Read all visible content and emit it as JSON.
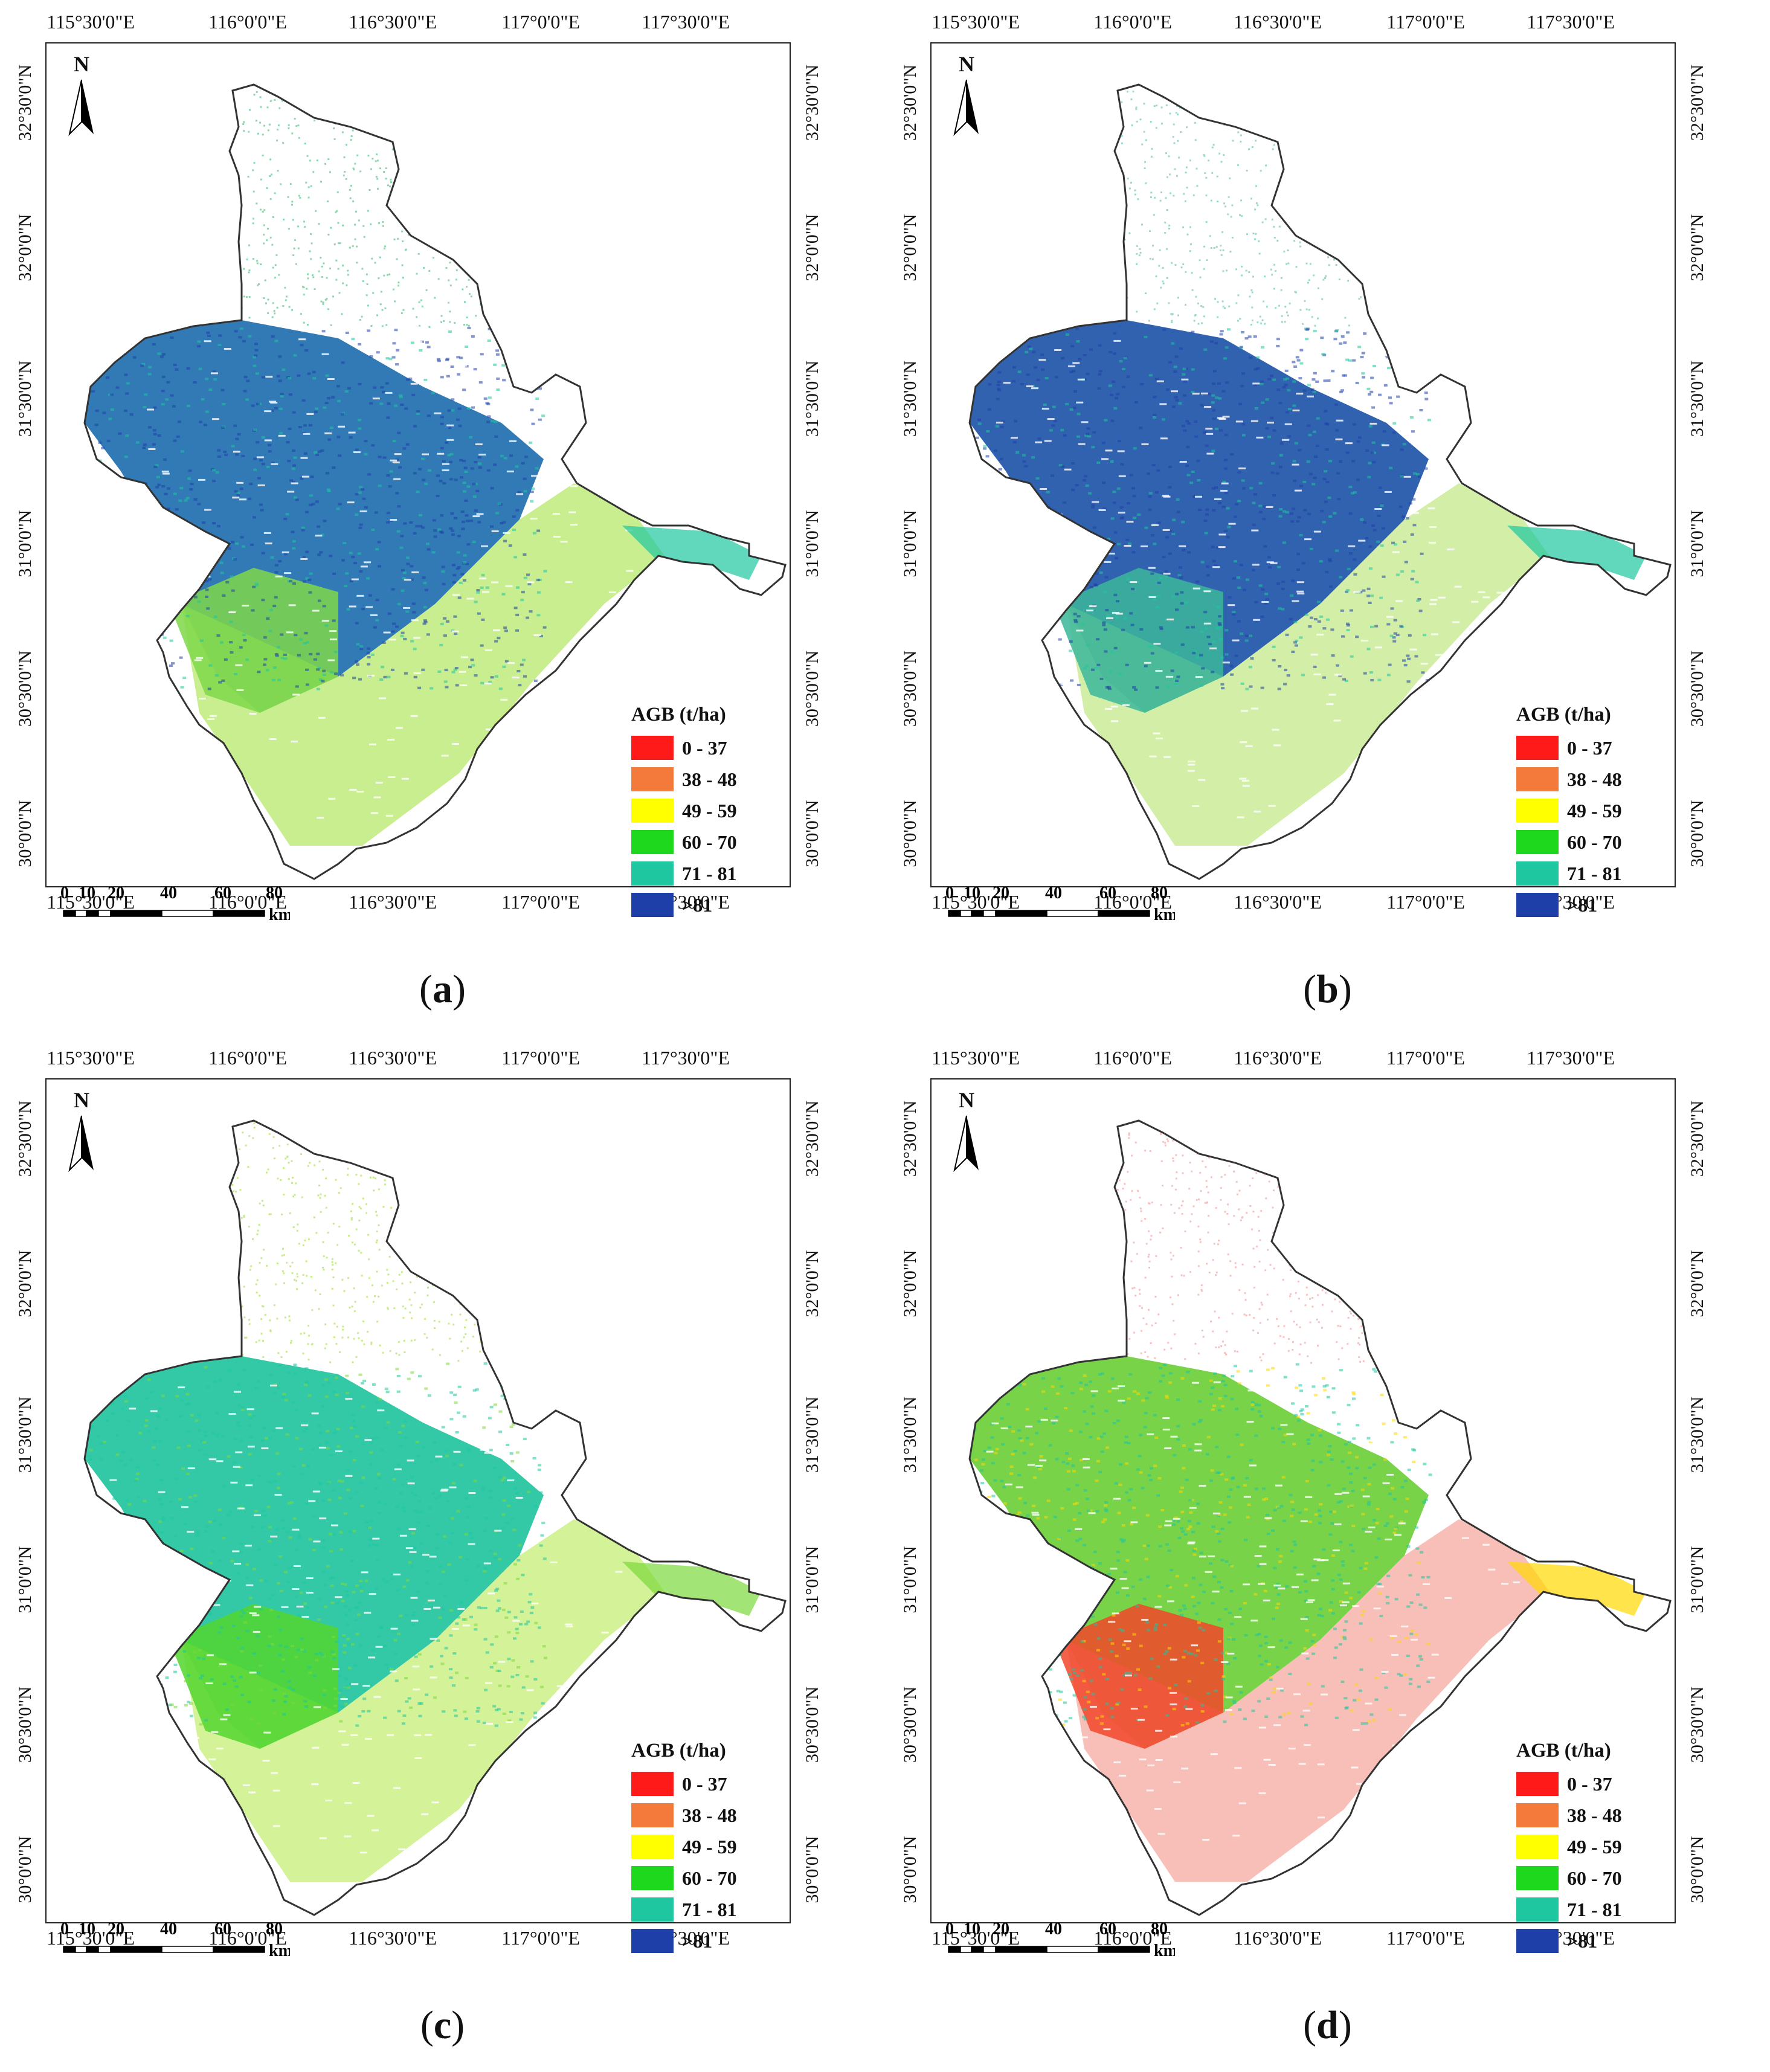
{
  "map": {
    "lon_ticks": [
      "115°30'0\"E",
      "116°0'0\"E",
      "116°30'0\"E",
      "117°0'0\"E",
      "117°30'0\"E"
    ],
    "lat_ticks": [
      "32°30'0\"N",
      "32°0'0\"N",
      "31°30'0\"N",
      "31°0'0\"N",
      "30°30'0\"N",
      "30°0'0\"N"
    ],
    "north_label": "N",
    "scale_labels": [
      "0",
      "10",
      "20",
      "40",
      "60",
      "80"
    ],
    "scale_unit": "km",
    "legend_title": "AGB (t/ha)",
    "legend": [
      {
        "label": "0 - 37",
        "color": "#ff1a1a"
      },
      {
        "label": "38 - 48",
        "color": "#f47a3c"
      },
      {
        "label": "49 - 59",
        "color": "#ffff00"
      },
      {
        "label": "60 - 70",
        "color": "#1ed81e"
      },
      {
        "label": "71 - 81",
        "color": "#1ec7a0"
      },
      {
        "label": ">81",
        "color": "#1f3fa8"
      }
    ]
  },
  "panels": [
    {
      "label": "a",
      "palette": {
        "north": "#8fd6b0",
        "west": "#1f6fb0",
        "south": "#7fd84a",
        "southeast": "#b5e86a",
        "dark": "#1f3fa8",
        "accent": "#1ec7a0"
      }
    },
    {
      "label": "b",
      "palette": {
        "north": "#9fd8cf",
        "west": "#1f55a8",
        "south": "#3bb79a",
        "southeast": "#c4ea8a",
        "dark": "#1f3fa8",
        "accent": "#1ec7a0"
      }
    },
    {
      "label": "c",
      "palette": {
        "north": "#c7ed8a",
        "west": "#22c4a0",
        "south": "#52d62e",
        "southeast": "#c6ed76",
        "dark": "#1ec7a0",
        "accent": "#7bd83a"
      }
    },
    {
      "label": "d",
      "palette": {
        "north": "#f6c2c2",
        "west": "#6ccf3a",
        "south": "#f2462a",
        "southeast": "#f6a8a0",
        "dark": "#1ec7a0",
        "accent": "#ffd800"
      }
    }
  ]
}
